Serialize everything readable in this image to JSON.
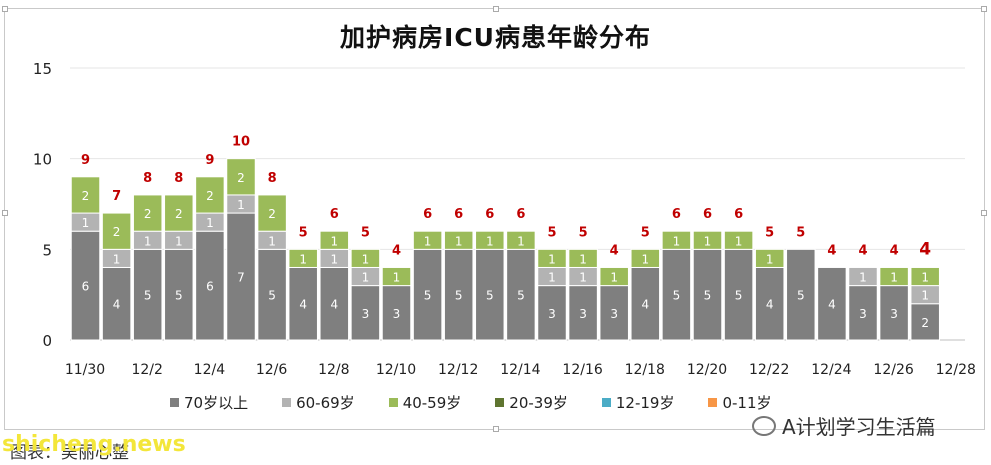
{
  "chart_data": {
    "type": "bar",
    "stacked": true,
    "title": "加护病房ICU病患年龄分布",
    "x_tick_labels": [
      "11/30",
      "12/2",
      "12/4",
      "12/6",
      "12/8",
      "12/10",
      "12/12",
      "12/14",
      "12/16",
      "12/18",
      "12/20",
      "12/22",
      "12/24",
      "12/26",
      "12/28"
    ],
    "categories": [
      "11/30",
      "12/1",
      "12/2",
      "12/3",
      "12/4",
      "12/5",
      "12/6",
      "12/7",
      "12/8",
      "12/9",
      "12/10",
      "12/11",
      "12/12",
      "12/13",
      "12/14",
      "12/15",
      "12/16",
      "12/17",
      "12/18",
      "12/19",
      "12/20",
      "12/21",
      "12/22",
      "12/23",
      "12/24",
      "12/25",
      "12/26",
      "12/27"
    ],
    "ylim": [
      0,
      15
    ],
    "yticks": [
      0,
      5,
      10,
      15
    ],
    "series": [
      {
        "name": "70岁以上",
        "color": "#7f7f7f",
        "values": [
          6,
          4,
          5,
          5,
          6,
          7,
          5,
          4,
          4,
          3,
          3,
          5,
          5,
          5,
          5,
          3,
          3,
          3,
          4,
          5,
          5,
          5,
          4,
          5,
          4,
          3,
          3,
          2
        ]
      },
      {
        "name": "60-69岁",
        "color": "#b3b3b3",
        "values": [
          1,
          1,
          1,
          1,
          1,
          1,
          1,
          0,
          1,
          1,
          0,
          0,
          0,
          0,
          0,
          1,
          1,
          0,
          0,
          0,
          0,
          0,
          0,
          0,
          0,
          1,
          0,
          1
        ]
      },
      {
        "name": "40-59岁",
        "color": "#9bbb59",
        "values": [
          2,
          2,
          2,
          2,
          2,
          2,
          2,
          1,
          1,
          1,
          1,
          1,
          1,
          1,
          1,
          1,
          1,
          1,
          1,
          1,
          1,
          1,
          1,
          0,
          0,
          0,
          1,
          1
        ]
      },
      {
        "name": "20-39岁",
        "color": "#5f7530",
        "values": [
          0,
          0,
          0,
          0,
          0,
          0,
          0,
          0,
          0,
          0,
          0,
          0,
          0,
          0,
          0,
          0,
          0,
          0,
          0,
          0,
          0,
          0,
          0,
          0,
          0,
          0,
          0,
          0
        ]
      },
      {
        "name": "12-19岁",
        "color": "#4bacc6",
        "values": [
          0,
          0,
          0,
          0,
          0,
          0,
          0,
          0,
          0,
          0,
          0,
          0,
          0,
          0,
          0,
          0,
          0,
          0,
          0,
          0,
          0,
          0,
          0,
          0,
          0,
          0,
          0,
          0
        ]
      },
      {
        "name": "0-11岁",
        "color": "#f79646",
        "values": [
          0,
          0,
          0,
          0,
          0,
          0,
          0,
          0,
          0,
          0,
          0,
          0,
          0,
          0,
          0,
          0,
          0,
          0,
          0,
          0,
          0,
          0,
          0,
          0,
          0,
          0,
          0,
          0
        ]
      }
    ],
    "segment_labels": {
      "70岁以上": [
        "6",
        "4",
        "5",
        "5",
        "6",
        "7",
        "5",
        "4",
        "4",
        "3",
        "3",
        "5",
        "5",
        "5",
        "5",
        "3",
        "3",
        "3",
        "4",
        "5",
        "5",
        "5",
        "4",
        "5",
        "4",
        "3",
        "3",
        "2"
      ],
      "60-69岁": [
        "1",
        "1",
        "1",
        "1",
        "1",
        "1",
        "1",
        "",
        "1",
        "1",
        "0",
        "",
        "",
        "",
        "",
        "1",
        "1",
        "",
        "",
        "",
        "",
        "",
        "",
        "",
        "",
        "1",
        "",
        "1"
      ],
      "40-59岁": [
        "2",
        "2",
        "2",
        "2",
        "2",
        "2",
        "2",
        "1",
        "1",
        "1",
        "1",
        "1",
        "1",
        "1",
        "1",
        "1",
        "1",
        "1",
        "1",
        "1",
        "1",
        "1",
        "1",
        "",
        "",
        "",
        "1",
        "1"
      ]
    },
    "totals": [
      "9",
      "7",
      "8",
      "8",
      "9",
      "10",
      "8",
      "5",
      "6",
      "5",
      "4",
      "6",
      "6",
      "6",
      "6",
      "5",
      "5",
      "4",
      "5",
      "6",
      "6",
      "6",
      "5",
      "5",
      "4",
      "4",
      "4",
      "4"
    ],
    "total_label_color": "#c00000",
    "legend_position": "bottom",
    "grid": true
  },
  "footer": {
    "watermark": "A计划学习生活篇",
    "site": "shicheng.news",
    "caption": "图表：吴丽心整"
  }
}
